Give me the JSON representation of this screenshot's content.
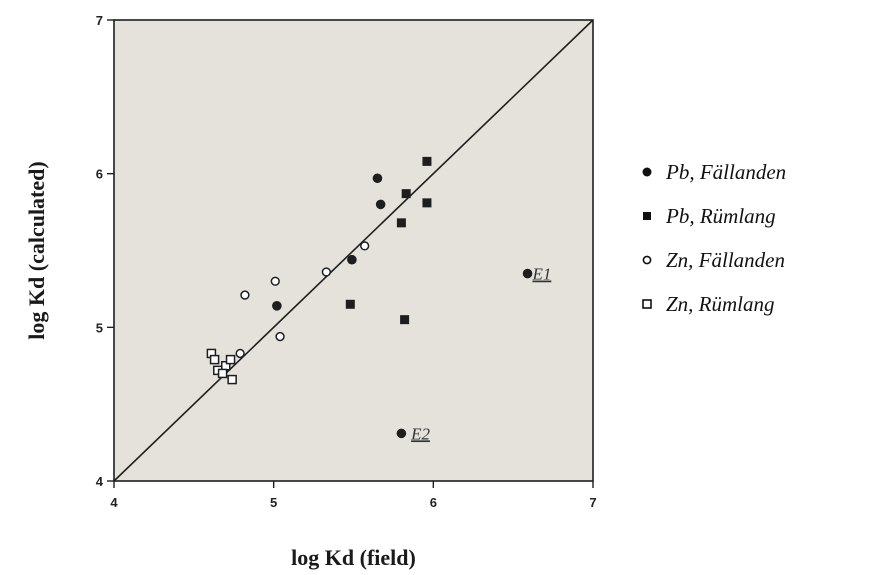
{
  "chart_data": {
    "type": "scatter",
    "xlabel": "log Kd (field)",
    "ylabel": "log Kd  (calculated)",
    "xlim": [
      4,
      7
    ],
    "ylim": [
      4,
      7
    ],
    "xticks": [
      "4",
      "5",
      "6",
      "7"
    ],
    "yticks": [
      "4",
      "5",
      "6",
      "7"
    ],
    "grid": false,
    "legend_position": "right",
    "reference_line": "y = x",
    "series": [
      {
        "name": "Pb, Fällanden",
        "marker": "filled-circle",
        "x": [
          5.02,
          5.49,
          5.65,
          5.67,
          6.59,
          5.8
        ],
        "y": [
          5.14,
          5.44,
          5.97,
          5.8,
          5.35,
          4.31
        ]
      },
      {
        "name": "Pb, Rümlang",
        "marker": "filled-square",
        "x": [
          5.48,
          5.8,
          5.83,
          5.96,
          5.96,
          5.82
        ],
        "y": [
          5.15,
          5.68,
          5.87,
          6.08,
          5.81,
          5.05
        ]
      },
      {
        "name": "Zn, Fällanden",
        "marker": "open-circle",
        "x": [
          4.82,
          5.01,
          5.04,
          5.33,
          5.57,
          4.79
        ],
        "y": [
          5.21,
          5.3,
          4.94,
          5.36,
          5.53,
          4.83
        ]
      },
      {
        "name": "Zn, Rümlang",
        "marker": "open-square",
        "x": [
          4.61,
          4.63,
          4.65,
          4.7,
          4.73,
          4.74,
          4.68
        ],
        "y": [
          4.83,
          4.79,
          4.72,
          4.75,
          4.79,
          4.66,
          4.7
        ]
      }
    ],
    "annotations": [
      {
        "text": "E1",
        "x": 6.68,
        "y": 5.35
      },
      {
        "text": "E2",
        "x": 5.92,
        "y": 4.31
      }
    ]
  },
  "legend": [
    {
      "marker": "filled-circle",
      "label": "Pb, Fällanden"
    },
    {
      "marker": "filled-square",
      "label": "Pb, Rümlang"
    },
    {
      "marker": "open-circle",
      "label": "Zn, Fällanden"
    },
    {
      "marker": "open-square",
      "label": "Zn, Rümlang"
    }
  ],
  "colors": {
    "plot_background": "#e5e2dc",
    "ink": "#1e1e1e"
  }
}
